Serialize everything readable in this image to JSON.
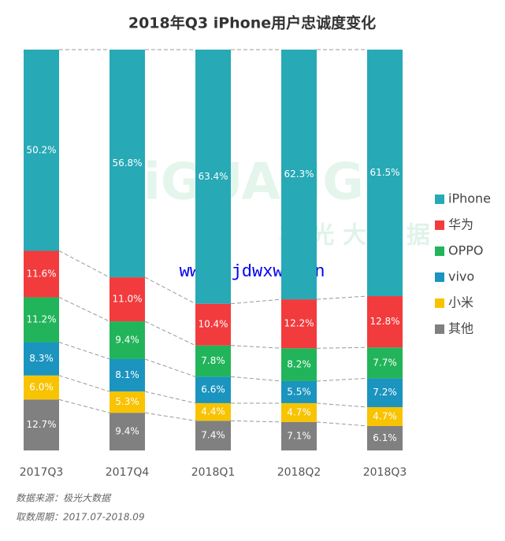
{
  "chart_data": {
    "type": "stacked-bar-100",
    "title": "2018年Q3 iPhone用户忠诚度变化",
    "categories": [
      "2017Q3",
      "2017Q4",
      "2018Q1",
      "2018Q2",
      "2018Q3"
    ],
    "series": [
      {
        "name": "iPhone",
        "color": "#27a9b6",
        "values": [
          50.2,
          56.8,
          63.4,
          62.3,
          61.5
        ],
        "value_labels": [
          "50.2%",
          "56.8%",
          "63.4%",
          "62.3%",
          "61.5%"
        ]
      },
      {
        "name": "华为",
        "color": "#f23b3d",
        "values": [
          11.6,
          11.0,
          10.4,
          12.2,
          12.8
        ],
        "value_labels": [
          "11.6%",
          "11.0%",
          "10.4%",
          "12.2%",
          "12.8%"
        ]
      },
      {
        "name": "OPPO",
        "color": "#22b45a",
        "values": [
          11.2,
          9.4,
          7.8,
          8.2,
          7.7
        ],
        "value_labels": [
          "11.2%",
          "9.4%",
          "7.8%",
          "8.2%",
          "7.7%"
        ]
      },
      {
        "name": "vivo",
        "color": "#1b94bf",
        "values": [
          8.3,
          8.1,
          6.6,
          5.5,
          7.2
        ],
        "value_labels": [
          "8.3%",
          "8.1%",
          "6.6%",
          "5.5%",
          "7.2%"
        ]
      },
      {
        "name": "小米",
        "color": "#f8c300",
        "values": [
          6.0,
          5.3,
          4.4,
          4.7,
          4.7
        ],
        "value_labels": [
          "6.0%",
          "5.3%",
          "4.4%",
          "4.7%",
          "4.7%"
        ]
      },
      {
        "name": "其他",
        "color": "#808080",
        "values": [
          12.7,
          9.4,
          7.4,
          7.1,
          6.1
        ],
        "value_labels": [
          "12.7%",
          "9.4%",
          "7.4%",
          "7.1%",
          "6.1%"
        ]
      }
    ],
    "legend": "right"
  },
  "watermark": {
    "brand": "JiGUANG",
    "brand_cn": "极 光 大 数 据",
    "site": "www. jdwxw. cn"
  },
  "notes": [
    "数据来源：极光大数据",
    "取数周期：2017.07-2018.09"
  ]
}
